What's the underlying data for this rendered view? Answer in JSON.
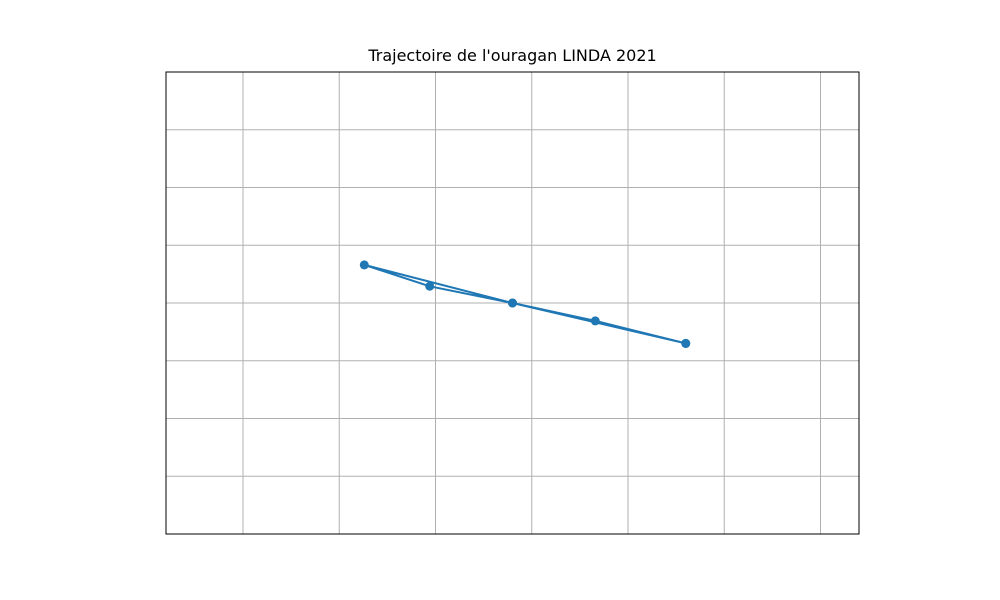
{
  "chart_data": {
    "type": "line",
    "title": "Trajectoire de l'ouragan LINDA 2021",
    "xlabel": "",
    "ylabel": "",
    "grid": true,
    "axis_tick_labels_visible": false,
    "series": [
      {
        "marker": "circle",
        "color": "#1f77b4",
        "points": [
          {
            "x": 1.6,
            "y": -0.7
          },
          {
            "x": 0.66,
            "y": -0.31
          },
          {
            "x": -0.2,
            "y": 0.0
          },
          {
            "x": -1.06,
            "y": 0.29
          },
          {
            "x": -1.74,
            "y": 0.66
          },
          {
            "x": -0.2,
            "y": 0.0
          },
          {
            "x": 1.6,
            "y": -0.7
          }
        ]
      }
    ],
    "xlim": [
      -3.8,
      3.4
    ],
    "ylim": [
      -4.0,
      4.0
    ]
  },
  "colors": {
    "line": "#1f77b4",
    "grid": "#b0b0b0",
    "axes": "#000000"
  }
}
